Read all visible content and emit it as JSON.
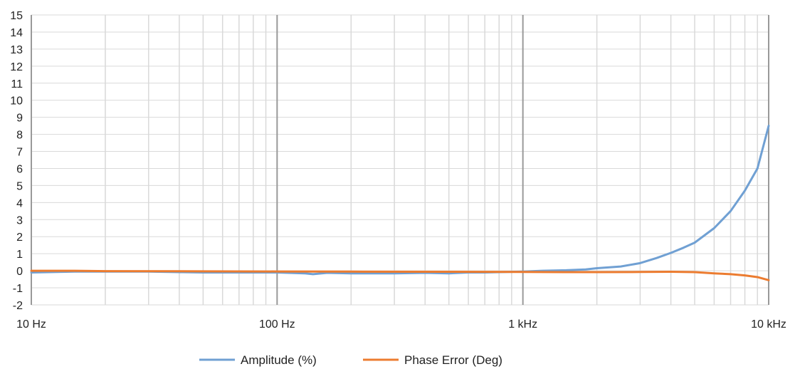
{
  "chart_data": {
    "type": "line",
    "title": "",
    "xlabel": "",
    "ylabel": "",
    "x_scale": "log",
    "xlim": [
      10,
      10000
    ],
    "ylim": [
      -2,
      15
    ],
    "grid": true,
    "legend_position": "bottom",
    "x_ticks": [
      {
        "value": 10,
        "label": "10 Hz"
      },
      {
        "value": 100,
        "label": "100 Hz"
      },
      {
        "value": 1000,
        "label": "1 kHz"
      },
      {
        "value": 10000,
        "label": "10 kHz"
      }
    ],
    "y_ticks": [
      -2,
      -1,
      0,
      1,
      2,
      3,
      4,
      5,
      6,
      7,
      8,
      9,
      10,
      11,
      12,
      13,
      14,
      15
    ],
    "series": [
      {
        "name": "Amplitude (%)",
        "color": "#70a0d3",
        "points": [
          [
            10,
            -0.1
          ],
          [
            15,
            -0.05
          ],
          [
            20,
            -0.05
          ],
          [
            30,
            -0.05
          ],
          [
            40,
            -0.08
          ],
          [
            50,
            -0.1
          ],
          [
            70,
            -0.1
          ],
          [
            100,
            -0.1
          ],
          [
            130,
            -0.15
          ],
          [
            140,
            -0.2
          ],
          [
            160,
            -0.12
          ],
          [
            200,
            -0.15
          ],
          [
            300,
            -0.15
          ],
          [
            400,
            -0.12
          ],
          [
            500,
            -0.15
          ],
          [
            600,
            -0.1
          ],
          [
            700,
            -0.1
          ],
          [
            800,
            -0.08
          ],
          [
            1000,
            -0.05
          ],
          [
            1200,
            0.0
          ],
          [
            1500,
            0.03
          ],
          [
            1800,
            0.08
          ],
          [
            2000,
            0.15
          ],
          [
            2500,
            0.25
          ],
          [
            3000,
            0.45
          ],
          [
            3500,
            0.75
          ],
          [
            4000,
            1.05
          ],
          [
            4500,
            1.35
          ],
          [
            5000,
            1.65
          ],
          [
            6000,
            2.5
          ],
          [
            7000,
            3.5
          ],
          [
            8000,
            4.7
          ],
          [
            9000,
            6.0
          ],
          [
            10000,
            8.5
          ]
        ]
      },
      {
        "name": "Phase Error (Deg)",
        "color": "#ec7c30",
        "points": [
          [
            10,
            0.0
          ],
          [
            15,
            0.0
          ],
          [
            20,
            -0.02
          ],
          [
            50,
            -0.03
          ],
          [
            100,
            -0.04
          ],
          [
            200,
            -0.05
          ],
          [
            500,
            -0.06
          ],
          [
            1000,
            -0.07
          ],
          [
            1500,
            -0.08
          ],
          [
            2000,
            -0.08
          ],
          [
            3000,
            -0.07
          ],
          [
            4000,
            -0.06
          ],
          [
            5000,
            -0.08
          ],
          [
            6000,
            -0.15
          ],
          [
            7000,
            -0.2
          ],
          [
            8000,
            -0.27
          ],
          [
            9000,
            -0.37
          ],
          [
            10000,
            -0.55
          ]
        ]
      }
    ]
  }
}
